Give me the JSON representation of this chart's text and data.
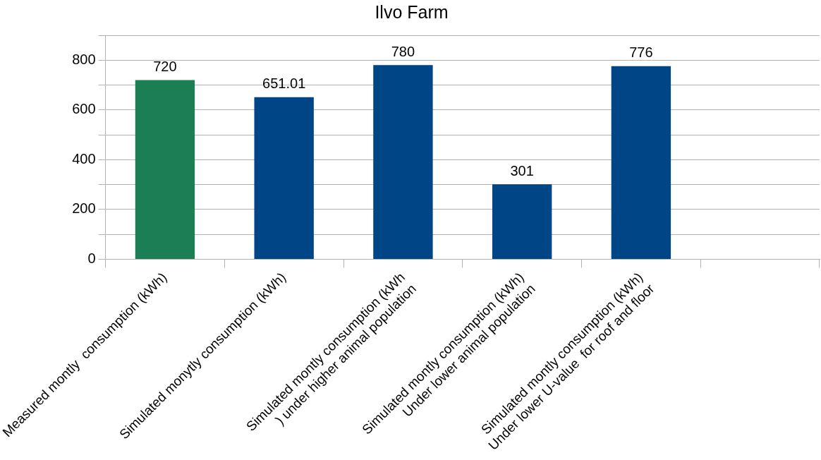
{
  "chart_data": {
    "type": "bar",
    "title": "Ilvo Farm",
    "categories": [
      "Measured montly  consumption (kWh)",
      "Simulated monytly consumption (kWh)",
      "Simulated montly consumption (kWh\n) under higher animal population",
      "Simulated montly consumption (kWh)\nUnder lower animal population",
      "Simulated montly consumption (kWh)\nUnder lower U-value  for roof and floor",
      null
    ],
    "values": [
      720,
      651.01,
      780,
      301,
      776,
      null
    ],
    "colors": [
      "#1b7f53",
      "#004586",
      "#004586",
      "#004586",
      "#004586",
      "#004586"
    ],
    "ylim": [
      0,
      900
    ],
    "yticks": [
      0,
      {
        "value": 100,
        "label": null
      },
      200,
      {
        "value": 300,
        "label": null
      },
      400,
      {
        "value": 500,
        "label": null
      },
      600,
      {
        "value": 700,
        "label": null
      },
      800,
      {
        "value": 900,
        "label": null
      }
    ],
    "grid": "y",
    "legend": false,
    "data_labels": true
  }
}
